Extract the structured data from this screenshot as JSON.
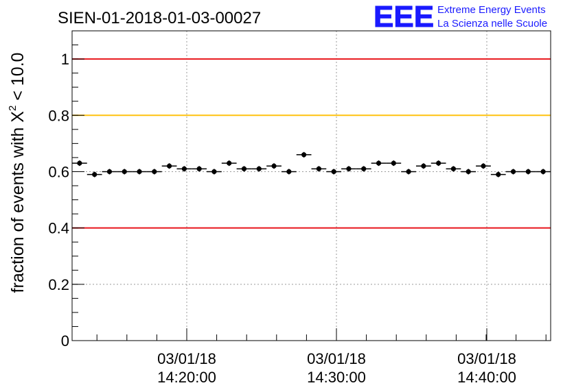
{
  "chart_data": {
    "type": "scatter",
    "title": "SIEN-01-2018-01-03-00027",
    "ylabel": {
      "prefix": "fraction of events with ",
      "chi": "X",
      "sup": "2",
      "suffix": " < 10.0"
    },
    "xlabel": "",
    "ylim": [
      0,
      1.1
    ],
    "y_ticks": [
      "0",
      "0.2",
      "0.4",
      "0.6",
      "0.8",
      "1"
    ],
    "x_ticks": [
      {
        "date": "03/01/18",
        "time": "14:20:00"
      },
      {
        "date": "03/01/18",
        "time": "14:30:00"
      },
      {
        "date": "03/01/18",
        "time": "14:40:00"
      }
    ],
    "reference_lines": [
      {
        "value": 1.0,
        "color": "#e8141a"
      },
      {
        "value": 0.8,
        "color": "#ffc20e"
      },
      {
        "value": 0.4,
        "color": "#e8141a"
      }
    ],
    "values": [
      0.63,
      0.59,
      0.6,
      0.6,
      0.6,
      0.6,
      0.62,
      0.61,
      0.61,
      0.6,
      0.63,
      0.61,
      0.61,
      0.62,
      0.6,
      0.66,
      0.61,
      0.6,
      0.61,
      0.61,
      0.63,
      0.63,
      0.6,
      0.62,
      0.63,
      0.61,
      0.6,
      0.62,
      0.59,
      0.6,
      0.6,
      0.6
    ],
    "grid": true
  },
  "logo": {
    "mark": "EEE",
    "line1": "Extreme Energy Events",
    "line2": "La Scienza nelle Scuole",
    "color": "#1a1aff"
  }
}
